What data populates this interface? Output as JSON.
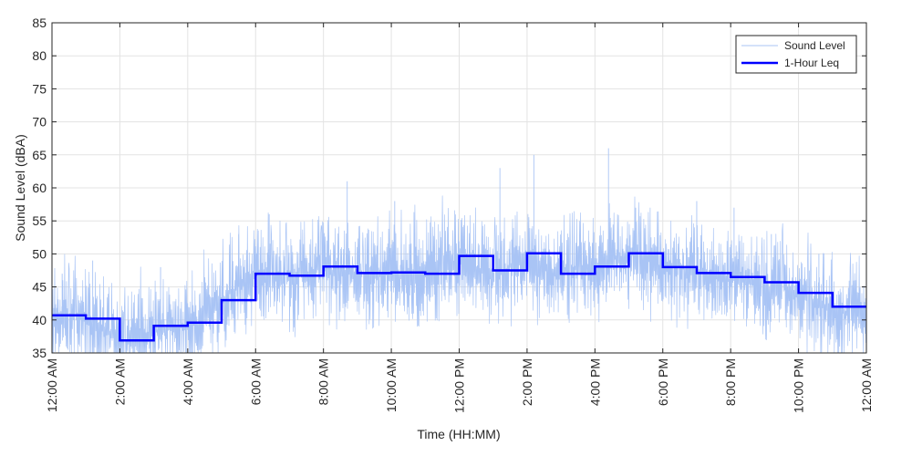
{
  "chart_data": {
    "type": "line",
    "xlabel": "Time (HH:MM)",
    "ylabel": "Sound Level (dBA)",
    "ylim": [
      35,
      85
    ],
    "xlim": [
      0,
      24
    ],
    "y_ticks": [
      35,
      40,
      45,
      50,
      55,
      60,
      65,
      70,
      75,
      80,
      85
    ],
    "x_ticks": [
      0,
      2,
      4,
      6,
      8,
      10,
      12,
      14,
      16,
      18,
      20,
      22,
      24
    ],
    "x_tick_labels": [
      "12:00 AM",
      "2:00 AM",
      "4:00 AM",
      "6:00 AM",
      "8:00 AM",
      "10:00 AM",
      "12:00 PM",
      "2:00 PM",
      "4:00 PM",
      "6:00 PM",
      "8:00 PM",
      "10:00 PM",
      "12:00 AM"
    ],
    "grid": true,
    "legend_position": "top-right",
    "colors": {
      "sound_level": "#a9c4f5",
      "leq": "#0000ff"
    },
    "series": [
      {
        "name": "Sound Level",
        "style": "thin-noisy",
        "x": [
          0,
          0.5,
          1,
          1.5,
          2,
          2.5,
          3,
          3.5,
          4,
          4.5,
          5,
          5.5,
          6,
          6.5,
          7,
          7.5,
          8,
          8.5,
          9,
          9.5,
          10,
          10.5,
          11,
          11.5,
          12,
          12.5,
          13,
          13.5,
          14,
          14.5,
          15,
          15.5,
          16,
          16.5,
          17,
          17.5,
          18,
          18.5,
          19,
          19.5,
          20,
          20.5,
          21,
          21.5,
          22,
          22.5,
          23,
          23.5,
          24
        ],
        "y": [
          40,
          41,
          40,
          39,
          37,
          37,
          38,
          39,
          39,
          40,
          43,
          45,
          47,
          47,
          46,
          47,
          48,
          47,
          47,
          47,
          47,
          47,
          47,
          48,
          49,
          48,
          47,
          48,
          49,
          48,
          47,
          48,
          48,
          49,
          50,
          49,
          48,
          48,
          47,
          47,
          46,
          46,
          45,
          45,
          44,
          42,
          42,
          41,
          41
        ],
        "peaks": [
          {
            "x": 0.3,
            "y": 47
          },
          {
            "x": 1.2,
            "y": 49
          },
          {
            "x": 3.2,
            "y": 48
          },
          {
            "x": 5.5,
            "y": 53
          },
          {
            "x": 6.4,
            "y": 56
          },
          {
            "x": 8.7,
            "y": 61
          },
          {
            "x": 10.1,
            "y": 58
          },
          {
            "x": 13.2,
            "y": 63
          },
          {
            "x": 14.2,
            "y": 65
          },
          {
            "x": 16.4,
            "y": 66
          },
          {
            "x": 17.2,
            "y": 57
          },
          {
            "x": 19.0,
            "y": 58
          },
          {
            "x": 20.1,
            "y": 57
          },
          {
            "x": 21.2,
            "y": 53
          },
          {
            "x": 22.6,
            "y": 50
          }
        ]
      },
      {
        "name": "1-Hour Leq",
        "style": "step",
        "x": [
          0,
          1,
          2,
          3,
          4,
          5,
          6,
          7,
          8,
          9,
          10,
          11,
          12,
          13,
          14,
          15,
          16,
          17,
          18,
          19,
          20,
          21,
          22,
          23
        ],
        "values": [
          40.7,
          40.2,
          36.9,
          39.1,
          39.6,
          43.0,
          47.0,
          46.7,
          48.1,
          47.1,
          47.2,
          47.0,
          49.7,
          47.5,
          50.1,
          47.0,
          48.1,
          50.1,
          48.0,
          47.1,
          46.5,
          45.7,
          44.1,
          42.0
        ]
      }
    ]
  }
}
